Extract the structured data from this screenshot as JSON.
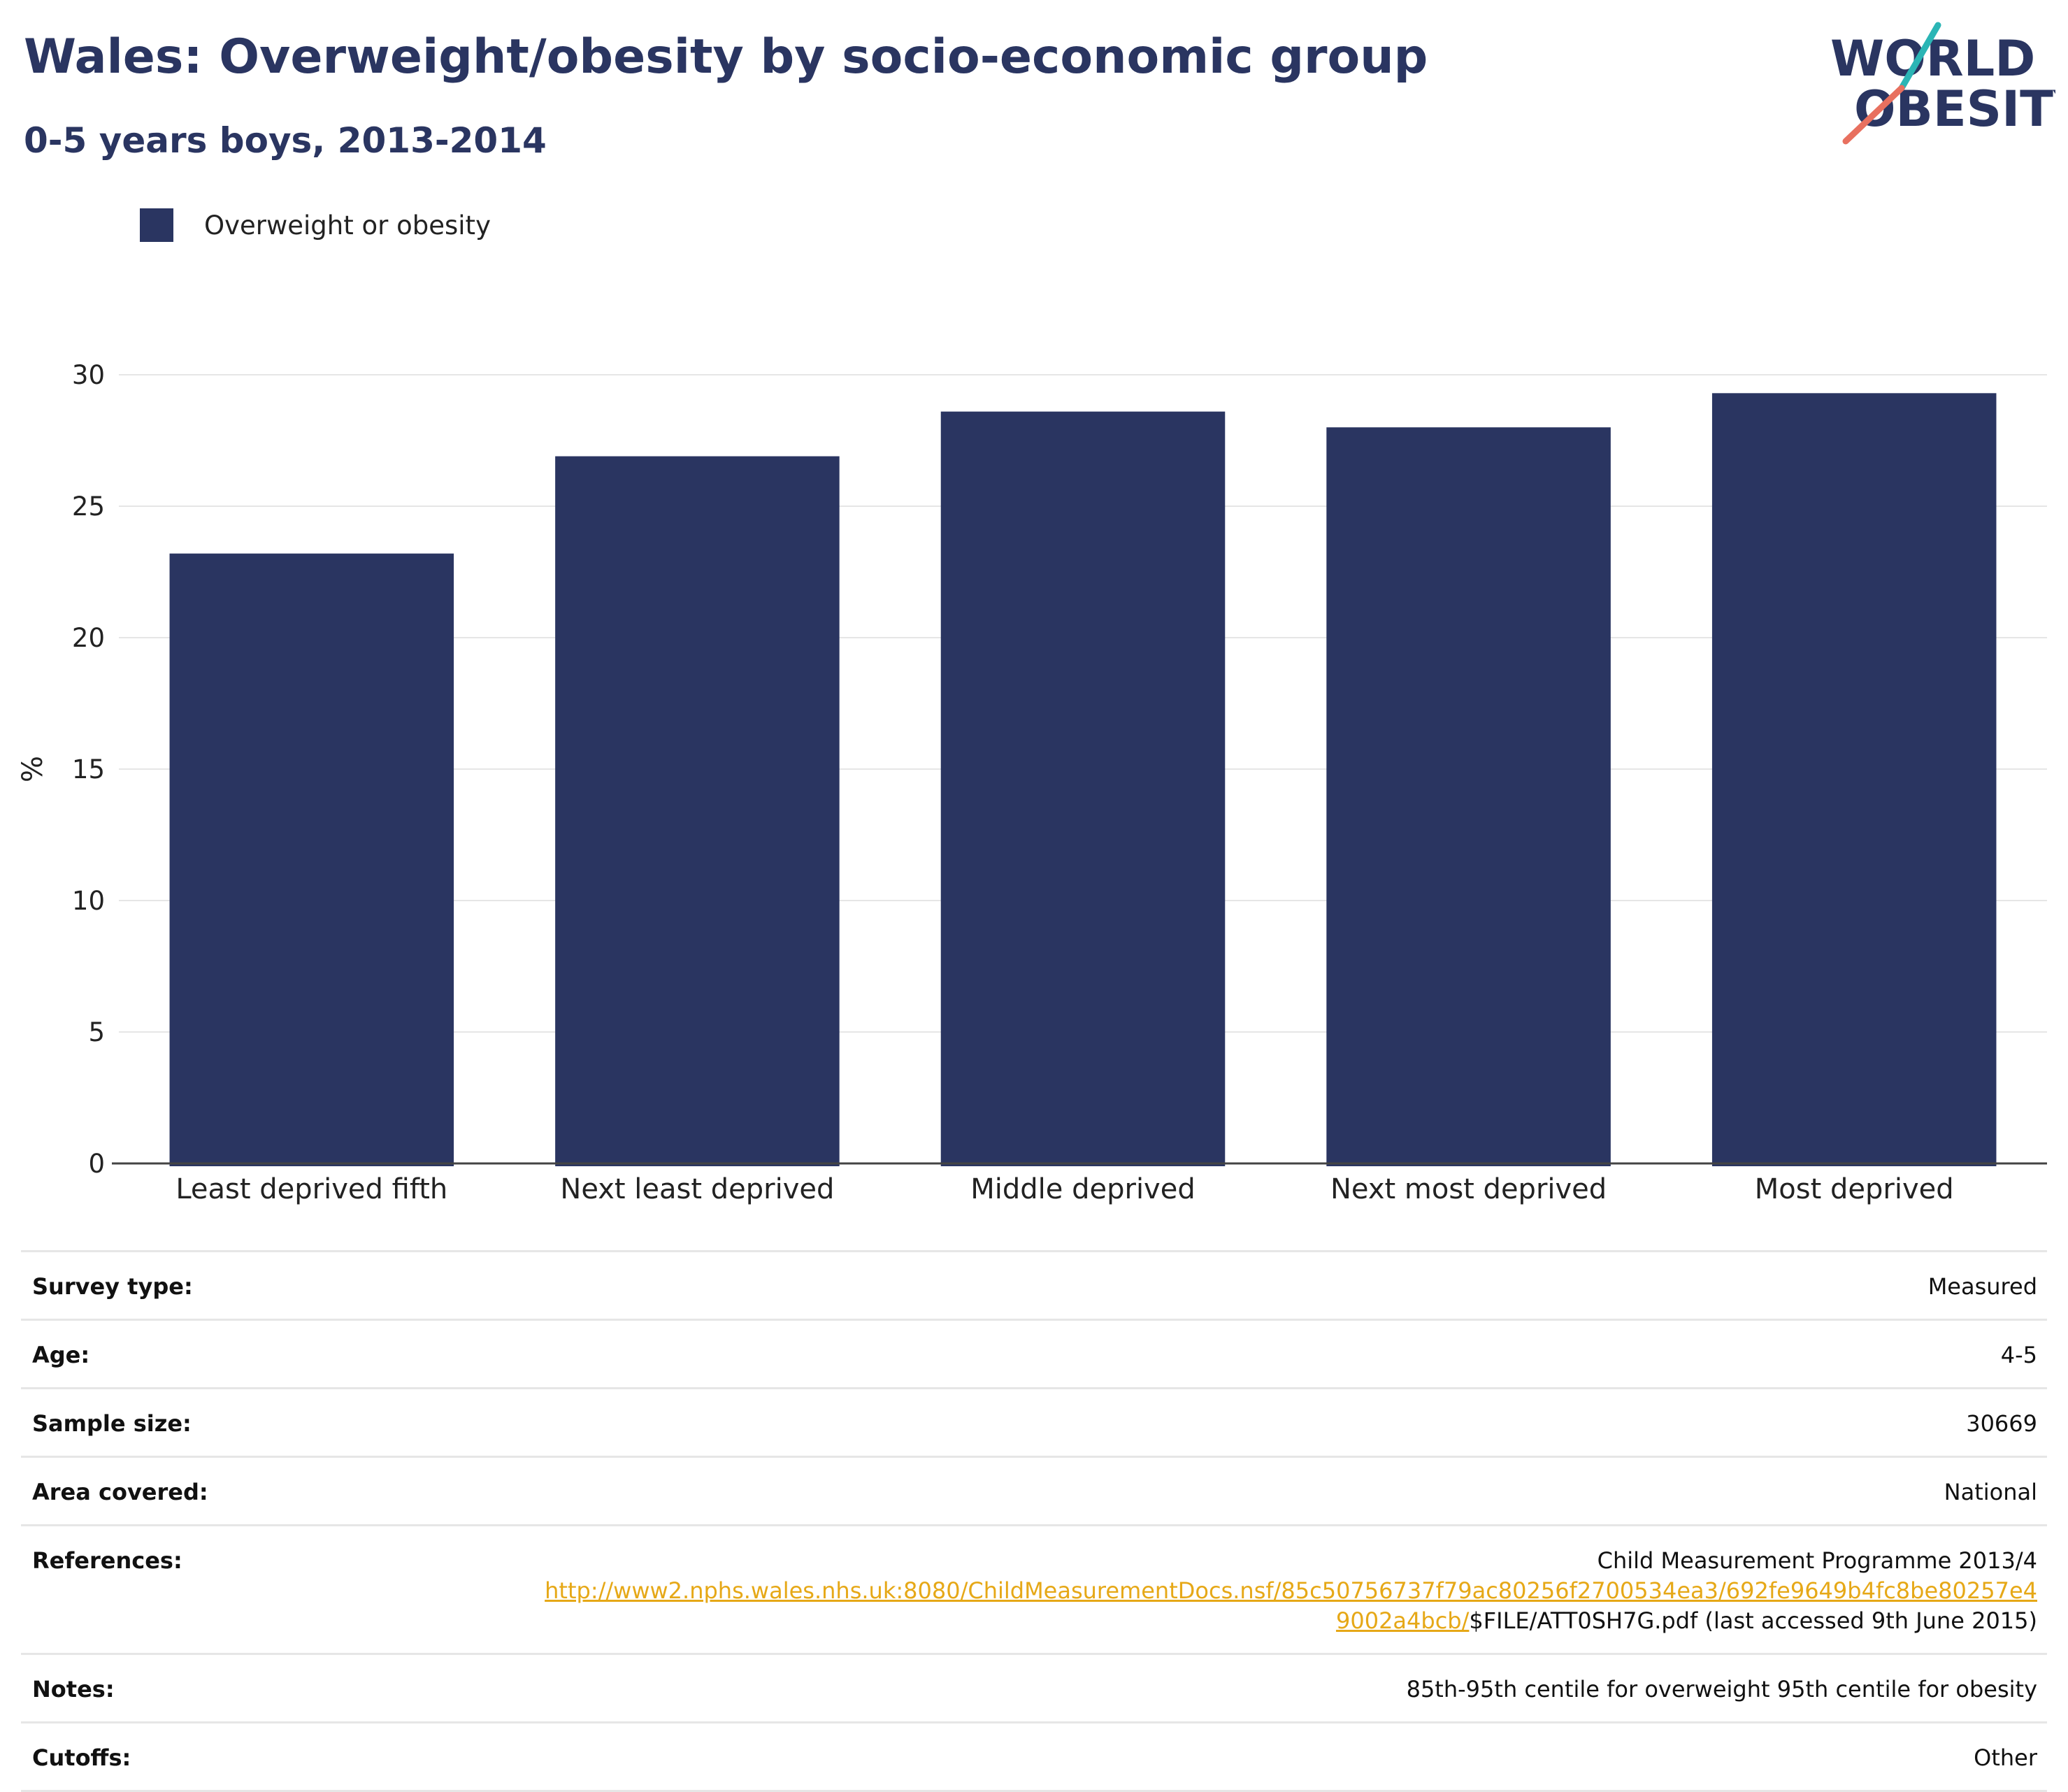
{
  "header": {
    "title": "Wales: Overweight/obesity by socio-economic group",
    "subtitle": "0-5 years boys, 2013-2014"
  },
  "logo": {
    "line1": "WORLD",
    "line2": "OBESITY",
    "colors": {
      "navy": "#2a3561",
      "teal": "#2bb5b5",
      "coral": "#e8705f"
    }
  },
  "legend": {
    "label": "Overweight or obesity",
    "color": "#2a3561"
  },
  "chart_data": {
    "type": "bar",
    "categories": [
      "Least deprived fifth",
      "Next least deprived",
      "Middle deprived",
      "Next most deprived",
      "Most deprived"
    ],
    "series": [
      {
        "name": "Overweight or obesity",
        "values": [
          23.2,
          26.9,
          28.6,
          28.0,
          29.3
        ],
        "color": "#2a3561"
      }
    ],
    "ylabel": "%",
    "ylim": [
      0,
      30
    ],
    "yticks": [
      0,
      5,
      10,
      15,
      20,
      25,
      30
    ],
    "grid": true,
    "legend_position": "top-left"
  },
  "info": {
    "survey_type": {
      "label": "Survey type:",
      "value": "Measured"
    },
    "age": {
      "label": "Age:",
      "value": "4-5"
    },
    "sample_size": {
      "label": "Sample size:",
      "value": "30669"
    },
    "area_covered": {
      "label": "Area covered:",
      "value": "National"
    },
    "references": {
      "label": "References:",
      "line1": "Child Measurement Programme 2013/4",
      "link_part1": "http://www2.nphs.wales.nhs.uk:8080/ChildMeasurementDocs.nsf/85c50756737f79ac80256f2700534ea3/692fe9649b4fc8be80257e4",
      "link_part2": "9002a4bcb/",
      "tail": "$FILE/ATT0SH7G.pdf (last accessed 9th June 2015)",
      "link_color": "#e6a817"
    },
    "notes": {
      "label": "Notes:",
      "value": "85th-95th centile for overweight 95th centile for obesity"
    },
    "cutoffs": {
      "label": "Cutoffs:",
      "value": "Other"
    }
  }
}
